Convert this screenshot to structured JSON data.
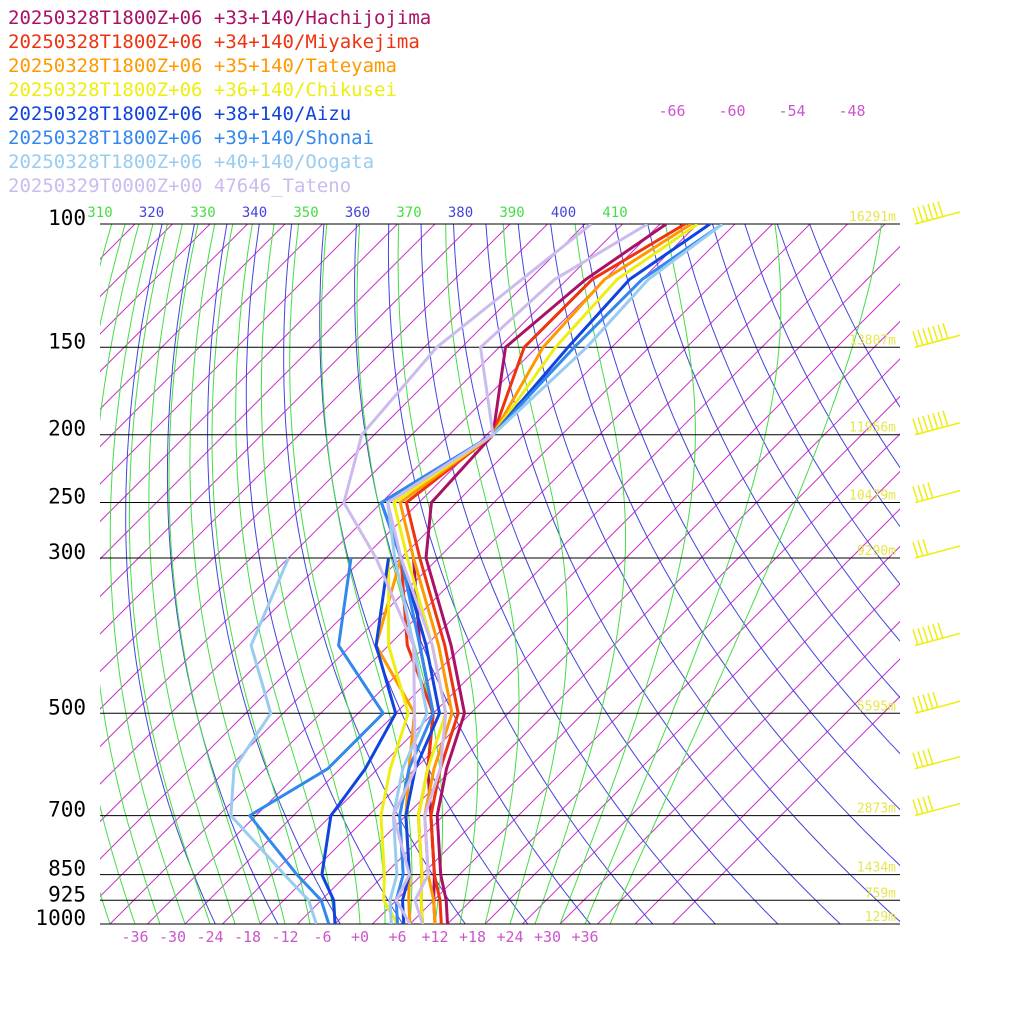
{
  "chart_data": {
    "type": "line",
    "title": "",
    "xlabel": "",
    "ylabel": "",
    "x_axis": {
      "unit": "°C",
      "range": [
        -40,
        40
      ],
      "ticks": [
        -36,
        -30,
        -24,
        -18,
        -12,
        -6,
        0,
        6,
        12,
        18,
        24,
        30,
        36
      ],
      "tick_labels": [
        "-36",
        "-30",
        "-24",
        "-18",
        "-12",
        "-6",
        "+0",
        "+6",
        "+12",
        "+18",
        "+24",
        "+30",
        "+36"
      ]
    },
    "y_axis": {
      "unit": "hPa",
      "scale": "log",
      "range": [
        1000,
        100
      ],
      "levels": [
        100,
        150,
        200,
        250,
        300,
        500,
        700,
        850,
        925,
        1000
      ],
      "level_labels": [
        "100",
        "150",
        "200",
        "250",
        "300",
        "500",
        "700",
        "850",
        "925",
        "1000"
      ]
    },
    "isotherm_labels": [
      "-66",
      "-60",
      "-54",
      "-48"
    ],
    "isotherm_label_temps": [
      -66,
      -60,
      -54,
      -48
    ],
    "theta_labels": [
      "310",
      "320",
      "330",
      "340",
      "350",
      "360",
      "370",
      "380",
      "390",
      "400",
      "410"
    ],
    "heights": [
      {
        "p": 100,
        "label": "16291m"
      },
      {
        "p": 150,
        "label": "13807m"
      },
      {
        "p": 200,
        "label": "11956m"
      },
      {
        "p": 250,
        "label": "10479m"
      },
      {
        "p": 300,
        "label": "9290m"
      },
      {
        "p": 500,
        "label": "5595m"
      },
      {
        "p": 700,
        "label": "2873m"
      },
      {
        "p": 850,
        "label": "1434m"
      },
      {
        "p": 925,
        "label": "759m"
      },
      {
        "p": 1000,
        "label": "129m"
      }
    ],
    "series": [
      {
        "name": "20250328T1800Z+06 +33+140/Hachijojima",
        "color": "#aa1166",
        "temperature": [
          [
            100,
            -63
          ],
          [
            120,
            -67
          ],
          [
            150,
            -69
          ],
          [
            200,
            -57
          ],
          [
            250,
            -56
          ],
          [
            300,
            -48
          ],
          [
            400,
            -30
          ],
          [
            500,
            -17
          ],
          [
            600,
            -11
          ],
          [
            700,
            -5
          ],
          [
            850,
            5
          ],
          [
            925,
            10
          ],
          [
            1000,
            14
          ]
        ],
        "dewpoint": [
          [
            300,
            -50
          ],
          [
            400,
            -35
          ],
          [
            500,
            -22
          ],
          [
            600,
            -14
          ],
          [
            700,
            -6
          ],
          [
            850,
            4
          ],
          [
            925,
            8
          ],
          [
            1000,
            12
          ]
        ]
      },
      {
        "name": "20250328T1800Z+06 +34+140/Miyakejima",
        "color": "#ee3311",
        "temperature": [
          [
            100,
            -60
          ],
          [
            120,
            -66
          ],
          [
            150,
            -66
          ],
          [
            200,
            -57
          ],
          [
            250,
            -60
          ],
          [
            300,
            -49
          ],
          [
            400,
            -31
          ],
          [
            500,
            -18
          ],
          [
            600,
            -12
          ],
          [
            700,
            -6
          ],
          [
            850,
            4
          ],
          [
            925,
            9
          ],
          [
            1000,
            13
          ]
        ],
        "dewpoint": [
          [
            300,
            -52
          ],
          [
            400,
            -37
          ],
          [
            500,
            -22
          ],
          [
            600,
            -14
          ],
          [
            700,
            -8
          ],
          [
            850,
            2
          ],
          [
            925,
            6
          ],
          [
            1000,
            10
          ]
        ]
      },
      {
        "name": "20250328T1800Z+06 +35+140/Tateyama",
        "color": "#ff9900",
        "temperature": [
          [
            100,
            -59
          ],
          [
            120,
            -64
          ],
          [
            150,
            -63
          ],
          [
            200,
            -57
          ],
          [
            250,
            -61
          ],
          [
            300,
            -50
          ],
          [
            400,
            -32
          ],
          [
            500,
            -19
          ],
          [
            600,
            -13
          ],
          [
            700,
            -7
          ],
          [
            850,
            3
          ],
          [
            925,
            8
          ],
          [
            1000,
            12
          ]
        ],
        "dewpoint": [
          [
            300,
            -52
          ],
          [
            400,
            -42
          ],
          [
            500,
            -25
          ],
          [
            600,
            -17
          ],
          [
            700,
            -10
          ],
          [
            850,
            0
          ],
          [
            925,
            4
          ],
          [
            1000,
            8
          ]
        ]
      },
      {
        "name": "20250328T1800Z+06 +36+140/Chikusei",
        "color": "#eeee11",
        "temperature": [
          [
            100,
            -58
          ],
          [
            120,
            -62
          ],
          [
            150,
            -61
          ],
          [
            200,
            -57
          ],
          [
            250,
            -62
          ],
          [
            300,
            -51
          ],
          [
            400,
            -33
          ],
          [
            500,
            -20
          ],
          [
            600,
            -14
          ],
          [
            700,
            -8
          ],
          [
            850,
            2
          ],
          [
            925,
            6
          ],
          [
            1000,
            10
          ]
        ],
        "dewpoint": [
          [
            300,
            -54
          ],
          [
            400,
            -40
          ],
          [
            500,
            -26
          ],
          [
            600,
            -20
          ],
          [
            700,
            -14
          ],
          [
            850,
            -4
          ],
          [
            925,
            0
          ],
          [
            1000,
            6
          ]
        ]
      },
      {
        "name": "20250328T1800Z+06 +38+140/Aizu",
        "color": "#1144dd",
        "temperature": [
          [
            100,
            -56
          ],
          [
            120,
            -60
          ],
          [
            150,
            -59
          ],
          [
            200,
            -57
          ],
          [
            250,
            -64
          ],
          [
            300,
            -52
          ],
          [
            400,
            -34
          ],
          [
            500,
            -21
          ],
          [
            600,
            -16
          ],
          [
            700,
            -10
          ],
          [
            850,
            0
          ],
          [
            925,
            3
          ],
          [
            1000,
            7
          ]
        ],
        "dewpoint": [
          [
            300,
            -54
          ],
          [
            400,
            -42
          ],
          [
            500,
            -28
          ],
          [
            600,
            -24
          ],
          [
            700,
            -22
          ],
          [
            850,
            -14
          ],
          [
            925,
            -8
          ],
          [
            1000,
            -4
          ]
        ]
      },
      {
        "name": "20250328T1800Z+06 +39+140/Shonai",
        "color": "#3388ee",
        "temperature": [
          [
            100,
            -54
          ],
          [
            120,
            -58
          ],
          [
            150,
            -58
          ],
          [
            200,
            -57
          ],
          [
            250,
            -64
          ],
          [
            300,
            -52
          ],
          [
            400,
            -35
          ],
          [
            500,
            -22
          ],
          [
            600,
            -17
          ],
          [
            700,
            -11
          ],
          [
            850,
            -1
          ],
          [
            925,
            2
          ],
          [
            1000,
            6
          ]
        ],
        "dewpoint": [
          [
            300,
            -60
          ],
          [
            400,
            -48
          ],
          [
            500,
            -30
          ],
          [
            600,
            -30
          ],
          [
            700,
            -35
          ],
          [
            850,
            -18
          ],
          [
            925,
            -10
          ],
          [
            1000,
            -5
          ]
        ]
      },
      {
        "name": "20250328T1800Z+06 +40+140/Oogata",
        "color": "#99ccf0",
        "temperature": [
          [
            100,
            -54
          ],
          [
            120,
            -57
          ],
          [
            150,
            -56
          ],
          [
            200,
            -57
          ],
          [
            250,
            -63
          ],
          [
            300,
            -53
          ],
          [
            400,
            -36
          ],
          [
            500,
            -23
          ],
          [
            600,
            -18
          ],
          [
            700,
            -12
          ],
          [
            850,
            -2
          ],
          [
            925,
            1
          ],
          [
            1000,
            5
          ]
        ],
        "dewpoint": [
          [
            300,
            -70
          ],
          [
            400,
            -62
          ],
          [
            500,
            -48
          ],
          [
            600,
            -45
          ],
          [
            700,
            -38
          ],
          [
            850,
            -20
          ],
          [
            925,
            -12
          ],
          [
            1000,
            -7
          ]
        ]
      },
      {
        "name": "20250329T0000Z+00 47646_Tateno",
        "color": "#ccbbee",
        "temperature": [
          [
            100,
            -66
          ],
          [
            120,
            -72
          ],
          [
            150,
            -73
          ],
          [
            200,
            -57
          ],
          [
            250,
            -63
          ],
          [
            300,
            -52
          ],
          [
            400,
            -33
          ],
          [
            500,
            -20
          ],
          [
            600,
            -12
          ],
          [
            700,
            -7
          ],
          [
            850,
            3
          ],
          [
            925,
            5
          ],
          [
            1000,
            10
          ]
        ],
        "dewpoint": [
          [
            100,
            -75
          ],
          [
            150,
            -80
          ],
          [
            200,
            -78
          ],
          [
            250,
            -70
          ],
          [
            300,
            -56
          ],
          [
            400,
            -36
          ],
          [
            500,
            -25
          ],
          [
            600,
            -16
          ],
          [
            700,
            -12
          ],
          [
            850,
            0
          ],
          [
            925,
            2
          ],
          [
            1000,
            8
          ]
        ]
      }
    ],
    "wind_barbs": [
      {
        "p": 100,
        "speed_kt": 60
      },
      {
        "p": 150,
        "speed_kt": 70
      },
      {
        "p": 200,
        "speed_kt": 65
      },
      {
        "p": 250,
        "speed_kt": 40
      },
      {
        "p": 300,
        "speed_kt": 30
      },
      {
        "p": 400,
        "speed_kt": 55
      },
      {
        "p": 500,
        "speed_kt": 45
      },
      {
        "p": 600,
        "speed_kt": 35
      },
      {
        "p": 700,
        "speed_kt": 35
      }
    ],
    "colors": {
      "isotherm": "#cc33cc",
      "dry_adiabat": "#4444dd",
      "moist_adiabat": "#44dd44",
      "pressure_line": "#000000",
      "height_text": "#e6e64d",
      "wind_barb": "#eeee11"
    }
  }
}
